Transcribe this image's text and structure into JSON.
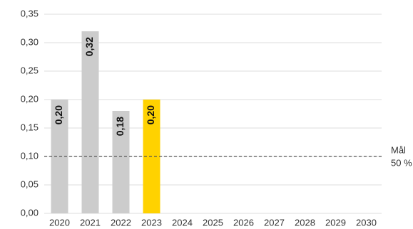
{
  "chart_data": {
    "type": "bar",
    "categories": [
      "2020",
      "2021",
      "2022",
      "2023",
      "2024",
      "2025",
      "2026",
      "2027",
      "2028",
      "2029",
      "2030"
    ],
    "values": [
      0.2,
      0.32,
      0.18,
      0.2,
      null,
      null,
      null,
      null,
      null,
      null,
      null
    ],
    "value_labels": [
      "0,20",
      "0,32",
      "0,18",
      "0,20",
      null,
      null,
      null,
      null,
      null,
      null,
      null
    ],
    "colors": [
      "#cccccc",
      "#cccccc",
      "#cccccc",
      "#ffd200",
      null,
      null,
      null,
      null,
      null,
      null,
      null
    ],
    "ylim": [
      0,
      0.35
    ],
    "yticks": [
      {
        "value": 0,
        "label": "0,00"
      },
      {
        "value": 0.05,
        "label": "0,05"
      },
      {
        "value": 0.1,
        "label": "0,10"
      },
      {
        "value": 0.15,
        "label": "0,15"
      },
      {
        "value": 0.2,
        "label": "0,20"
      },
      {
        "value": 0.25,
        "label": "0,25"
      },
      {
        "value": 0.3,
        "label": "0,30"
      },
      {
        "value": 0.35,
        "label": "0,35"
      }
    ],
    "grid": true,
    "reference_line": {
      "value": 0.1,
      "label_lines": [
        "Mål",
        "50 %"
      ]
    }
  }
}
